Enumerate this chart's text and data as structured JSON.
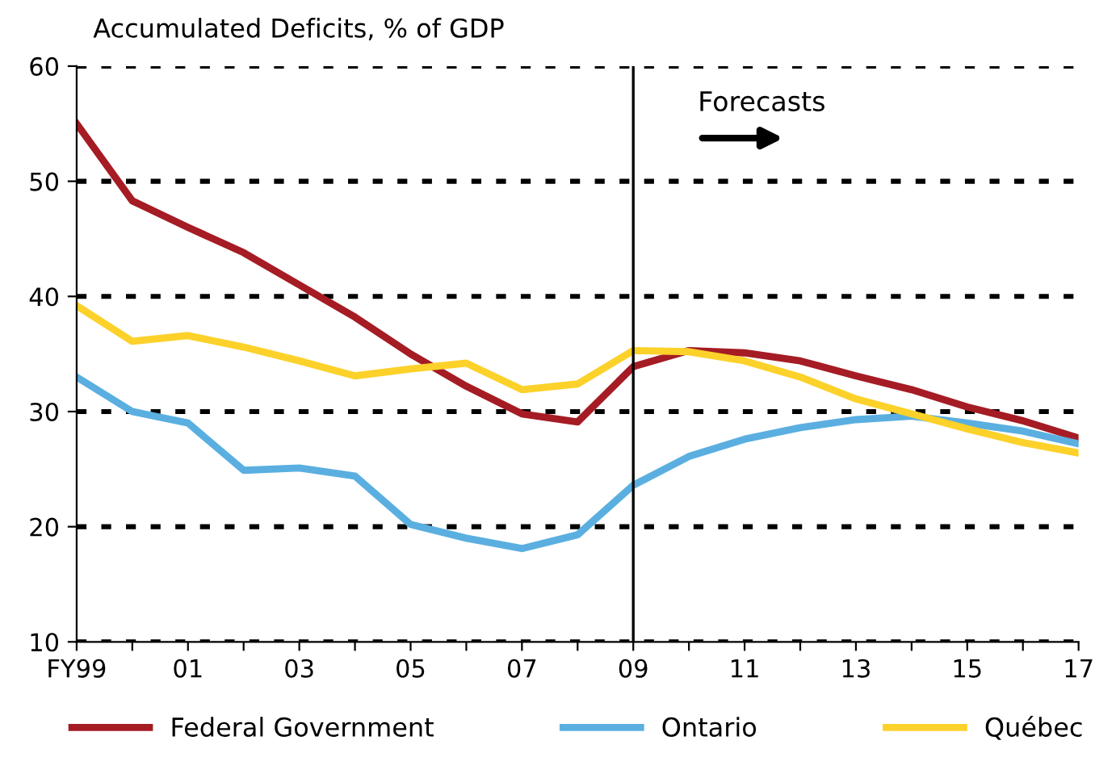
{
  "chart_data": {
    "type": "line",
    "ylabel": "Accumulated Deficits, % of GDP",
    "categories": [
      "FY99",
      null,
      "01",
      null,
      "03",
      null,
      "05",
      null,
      "07",
      null,
      "09",
      null,
      "11",
      null,
      "13",
      null,
      "15",
      null,
      "17"
    ],
    "series": [
      {
        "name": "Federal Government",
        "color": "#a51c24",
        "values": [
          55,
          48.3,
          46,
          43.8,
          41,
          38.2,
          35,
          32.2,
          29.8,
          29.1,
          33.9,
          35.3,
          35.1,
          34.4,
          33.1,
          31.9,
          30.4,
          29.2,
          27.7
        ]
      },
      {
        "name": "Ontario",
        "color": "#5aafe0",
        "values": [
          33,
          30,
          29,
          24.9,
          25.1,
          24.4,
          20.2,
          19,
          18.1,
          19.3,
          23.6,
          26.1,
          27.6,
          28.6,
          29.3,
          29.6,
          29,
          28.3,
          27.2
        ]
      },
      {
        "name": "Québec",
        "color": "#fcd12a",
        "values": [
          39.2,
          36.1,
          36.6,
          35.6,
          34.4,
          33.1,
          33.7,
          34.2,
          31.9,
          32.4,
          35.3,
          35.2,
          34.4,
          33,
          31.1,
          29.8,
          28.5,
          27.3,
          26.4
        ]
      }
    ],
    "ylim": [
      10,
      60
    ],
    "yticks": [
      10,
      20,
      30,
      40,
      50,
      60
    ],
    "grid": "y",
    "legend": "bottom",
    "marker": "none",
    "line_style": "solid",
    "ref_lines": [
      {
        "axis": "x",
        "value": "09",
        "color": "#000000",
        "line_style": "solid"
      }
    ],
    "annotations": [
      "Forecasts"
    ]
  }
}
